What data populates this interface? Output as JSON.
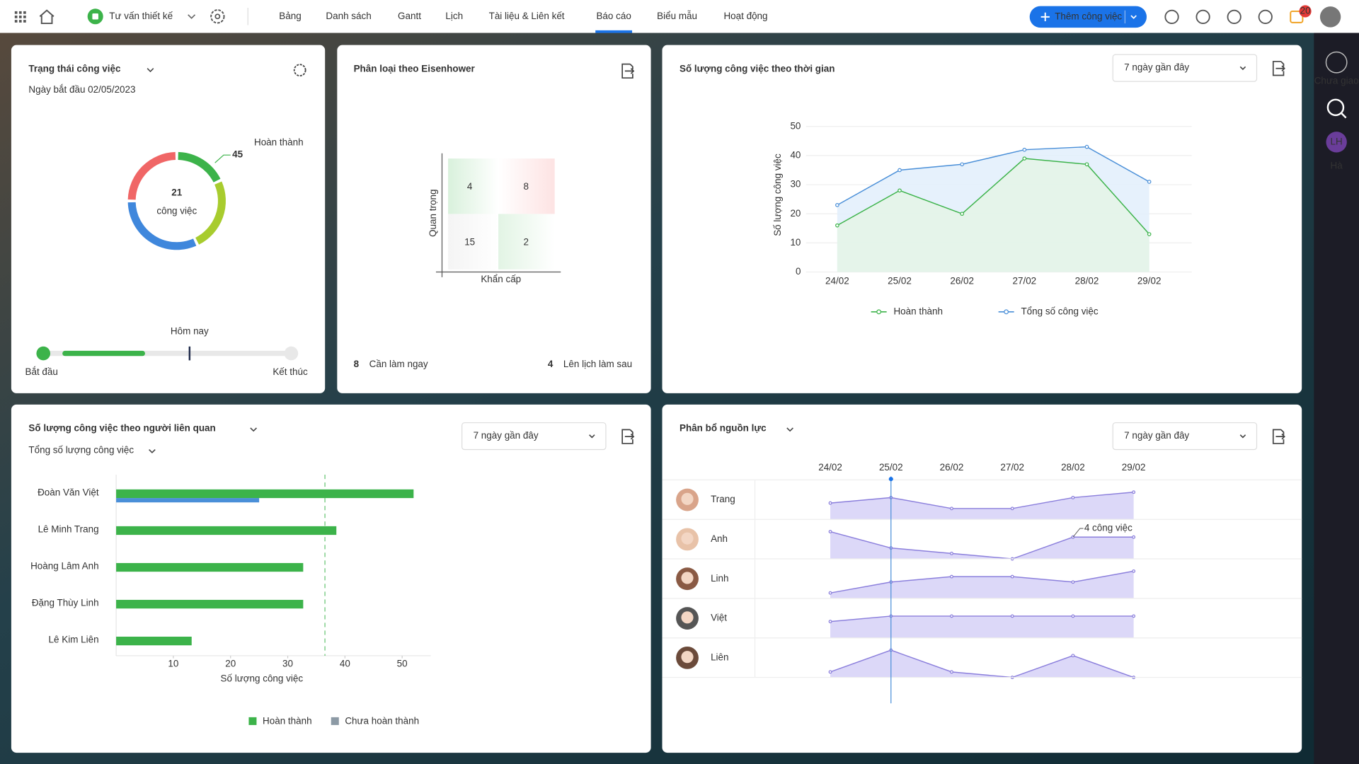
{
  "topbar": {
    "project": "Tư vấn thiết kế",
    "tabs": [
      "Bảng",
      "Danh sách",
      "Gantt",
      "Lịch",
      "Tài liệu & Liên kết",
      "Báo cáo",
      "Biểu mẫu",
      "Hoạt động"
    ],
    "active_tab": 5,
    "add_button": "Thêm công việc",
    "notifications": 20
  },
  "sidebar": {
    "unassigned": "Chưa giao",
    "user_initials": "LH",
    "user_name": "Hà"
  },
  "status_panel": {
    "title": "Trạng thái công việc",
    "start_date": "Ngày bắt đầu 02/05/2023",
    "chart_data": {
      "type": "donut",
      "total": 21,
      "total_label": "công việc",
      "callout_label": "Hoàn thành",
      "callout_value": 45,
      "segments": [
        {
          "color": "#3cb34a",
          "value": 18
        },
        {
          "color": "#a8cc2e",
          "value": 25
        },
        {
          "color": "#3f87dc",
          "value": 32
        },
        {
          "color": "#f06666",
          "value": 25
        }
      ]
    },
    "timeline": {
      "today_label": "Hôm nay",
      "start_label": "Bắt đầu",
      "end_label": "Kết thúc",
      "progress": 40,
      "today": 59
    }
  },
  "eisenhower": {
    "title": "Phân loại theo Eisenhower",
    "y_label": "Quan trọng",
    "x_label": "Khẩn cấp",
    "cells": [
      4,
      8,
      15,
      2
    ],
    "footer": [
      {
        "value": 8,
        "label": "Cần làm ngay"
      },
      {
        "value": 4,
        "label": "Lên lịch làm sau"
      }
    ]
  },
  "timeline_chart": {
    "title": "Số lượng công việc theo thời gian",
    "range": "7 ngày gần đây",
    "chart_data": {
      "type": "line",
      "categories": [
        "24/02",
        "25/02",
        "26/02",
        "27/02",
        "28/02",
        "29/02"
      ],
      "y_label": "Số lượng công việc",
      "ylim": [
        0,
        50
      ],
      "yticks": [
        0,
        10,
        20,
        30,
        40,
        50
      ],
      "grid": true,
      "series": [
        {
          "name": "Hoàn thành",
          "color": "#3cb34a",
          "values": [
            16,
            28,
            20,
            39,
            37,
            13
          ]
        },
        {
          "name": "Tổng số công việc",
          "color": "#4a8fd8",
          "values": [
            23,
            35,
            37,
            42,
            43,
            31
          ]
        }
      ]
    }
  },
  "assignee_chart": {
    "title": "Số lượng công việc theo người liên quan",
    "subtitle": "Tổng số lượng công việc",
    "range": "7 ngày gần đây",
    "chart_data": {
      "type": "hbar",
      "categories": [
        "Đoàn Văn Việt",
        "Lê Minh Trang",
        "Hoàng Lâm Anh",
        "Đặng Thùy Linh",
        "Lê Kim Liên"
      ],
      "x_label": "Số lượng công việc",
      "xlim": [
        0,
        55
      ],
      "xticks": [
        10,
        20,
        30,
        40,
        50
      ],
      "reference_line": 36.5,
      "series": [
        {
          "name": "Hoàn thành",
          "color": "#3cb34a",
          "values": [
            52,
            38.5,
            32.7,
            32.7,
            13.2
          ]
        },
        {
          "name": "Chưa hoàn thành",
          "color": "#4a8fd8",
          "legend_color": "#8c9aa5",
          "values": [
            25,
            0,
            0,
            0,
            0
          ]
        }
      ]
    }
  },
  "resource": {
    "title": "Phân bổ nguồn lực",
    "range": "7 ngày gần đây",
    "dates": [
      "24/02",
      "25/02",
      "26/02",
      "27/02",
      "28/02",
      "29/02"
    ],
    "today_index": 1,
    "ylim": [
      0,
      7
    ],
    "annotation": {
      "row": 1,
      "index": 4,
      "label": "4 công việc"
    },
    "rows": [
      {
        "name": "Trang",
        "values": [
          3,
          4,
          2,
          2,
          4,
          5
        ]
      },
      {
        "name": "Anh",
        "values": [
          5,
          2,
          1,
          0,
          4,
          4
        ]
      },
      {
        "name": "Linh",
        "values": [
          1,
          3,
          4,
          4,
          3,
          5
        ]
      },
      {
        "name": "Việt",
        "values": [
          3,
          4,
          4,
          4,
          4,
          4
        ]
      },
      {
        "name": "Liên",
        "values": [
          1,
          5,
          1,
          0,
          4,
          0
        ]
      }
    ]
  }
}
